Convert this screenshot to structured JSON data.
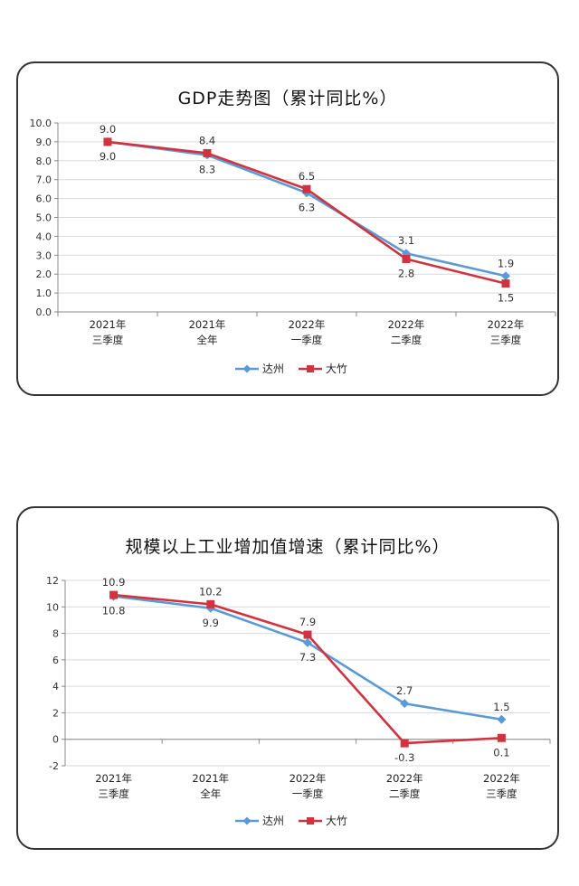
{
  "chart_data": [
    {
      "type": "line",
      "title": "GDP走势图（累计同比%）",
      "categories": [
        [
          "2021年",
          "三季度"
        ],
        [
          "2021年",
          "全年"
        ],
        [
          "2022年",
          "一季度"
        ],
        [
          "2022年",
          "二季度"
        ],
        [
          "2022年",
          "三季度"
        ]
      ],
      "series": [
        {
          "name": "达州",
          "values": [
            9.0,
            8.3,
            6.3,
            3.1,
            1.9
          ],
          "color": "#5b9bd5",
          "marker": "diamond"
        },
        {
          "name": "大竹",
          "values": [
            9.0,
            8.4,
            6.5,
            2.8,
            1.5
          ],
          "color": "#d0333f",
          "marker": "square"
        }
      ],
      "ylim": [
        0,
        10
      ],
      "yticks": [
        "0.0",
        "1.0",
        "2.0",
        "3.0",
        "4.0",
        "5.0",
        "6.0",
        "7.0",
        "8.0",
        "9.0",
        "10.0"
      ],
      "data_labels": [
        {
          "text": "9.0",
          "cat": 0,
          "pos": "above"
        },
        {
          "text": "9.0",
          "cat": 0,
          "pos": "below"
        },
        {
          "text": "8.4",
          "cat": 1,
          "pos": "above"
        },
        {
          "text": "8.3",
          "cat": 1,
          "pos": "below"
        },
        {
          "text": "6.5",
          "cat": 2,
          "pos": "above"
        },
        {
          "text": "6.3",
          "cat": 2,
          "pos": "below"
        },
        {
          "text": "3.1",
          "cat": 3,
          "pos": "above"
        },
        {
          "text": "2.8",
          "cat": 3,
          "pos": "below"
        },
        {
          "text": "1.9",
          "cat": 4,
          "pos": "above"
        },
        {
          "text": "1.5",
          "cat": 4,
          "pos": "below"
        }
      ],
      "grid": true,
      "legend": "bottom"
    },
    {
      "type": "line",
      "title": "规模以上工业增加值增速（累计同比%）",
      "categories": [
        [
          "2021年",
          "三季度"
        ],
        [
          "2021年",
          "全年"
        ],
        [
          "2022年",
          "一季度"
        ],
        [
          "2022年",
          "二季度"
        ],
        [
          "2022年",
          "三季度"
        ]
      ],
      "series": [
        {
          "name": "达州",
          "values": [
            10.8,
            9.9,
            7.3,
            2.7,
            1.5
          ],
          "color": "#5b9bd5",
          "marker": "diamond"
        },
        {
          "name": "大竹",
          "values": [
            10.9,
            10.2,
            7.9,
            -0.3,
            0.1
          ],
          "color": "#d0333f",
          "marker": "square"
        }
      ],
      "ylim": [
        -2,
        12
      ],
      "yticks": [
        "-2",
        "0",
        "2",
        "4",
        "6",
        "8",
        "10",
        "12"
      ],
      "data_labels": [
        {
          "text": "10.9",
          "cat": 0,
          "pos": "above"
        },
        {
          "text": "10.8",
          "cat": 0,
          "pos": "below"
        },
        {
          "text": "10.2",
          "cat": 1,
          "pos": "above"
        },
        {
          "text": "9.9",
          "cat": 1,
          "pos": "below"
        },
        {
          "text": "7.9",
          "cat": 2,
          "pos": "above"
        },
        {
          "text": "7.3",
          "cat": 2,
          "pos": "below"
        },
        {
          "text": "2.7",
          "cat": 3,
          "pos": "above"
        },
        {
          "text": "-0.3",
          "cat": 3,
          "pos": "below"
        },
        {
          "text": "1.5",
          "cat": 4,
          "pos": "above"
        },
        {
          "text": "0.1",
          "cat": 4,
          "pos": "below"
        }
      ],
      "grid": true,
      "legend": "bottom"
    }
  ]
}
